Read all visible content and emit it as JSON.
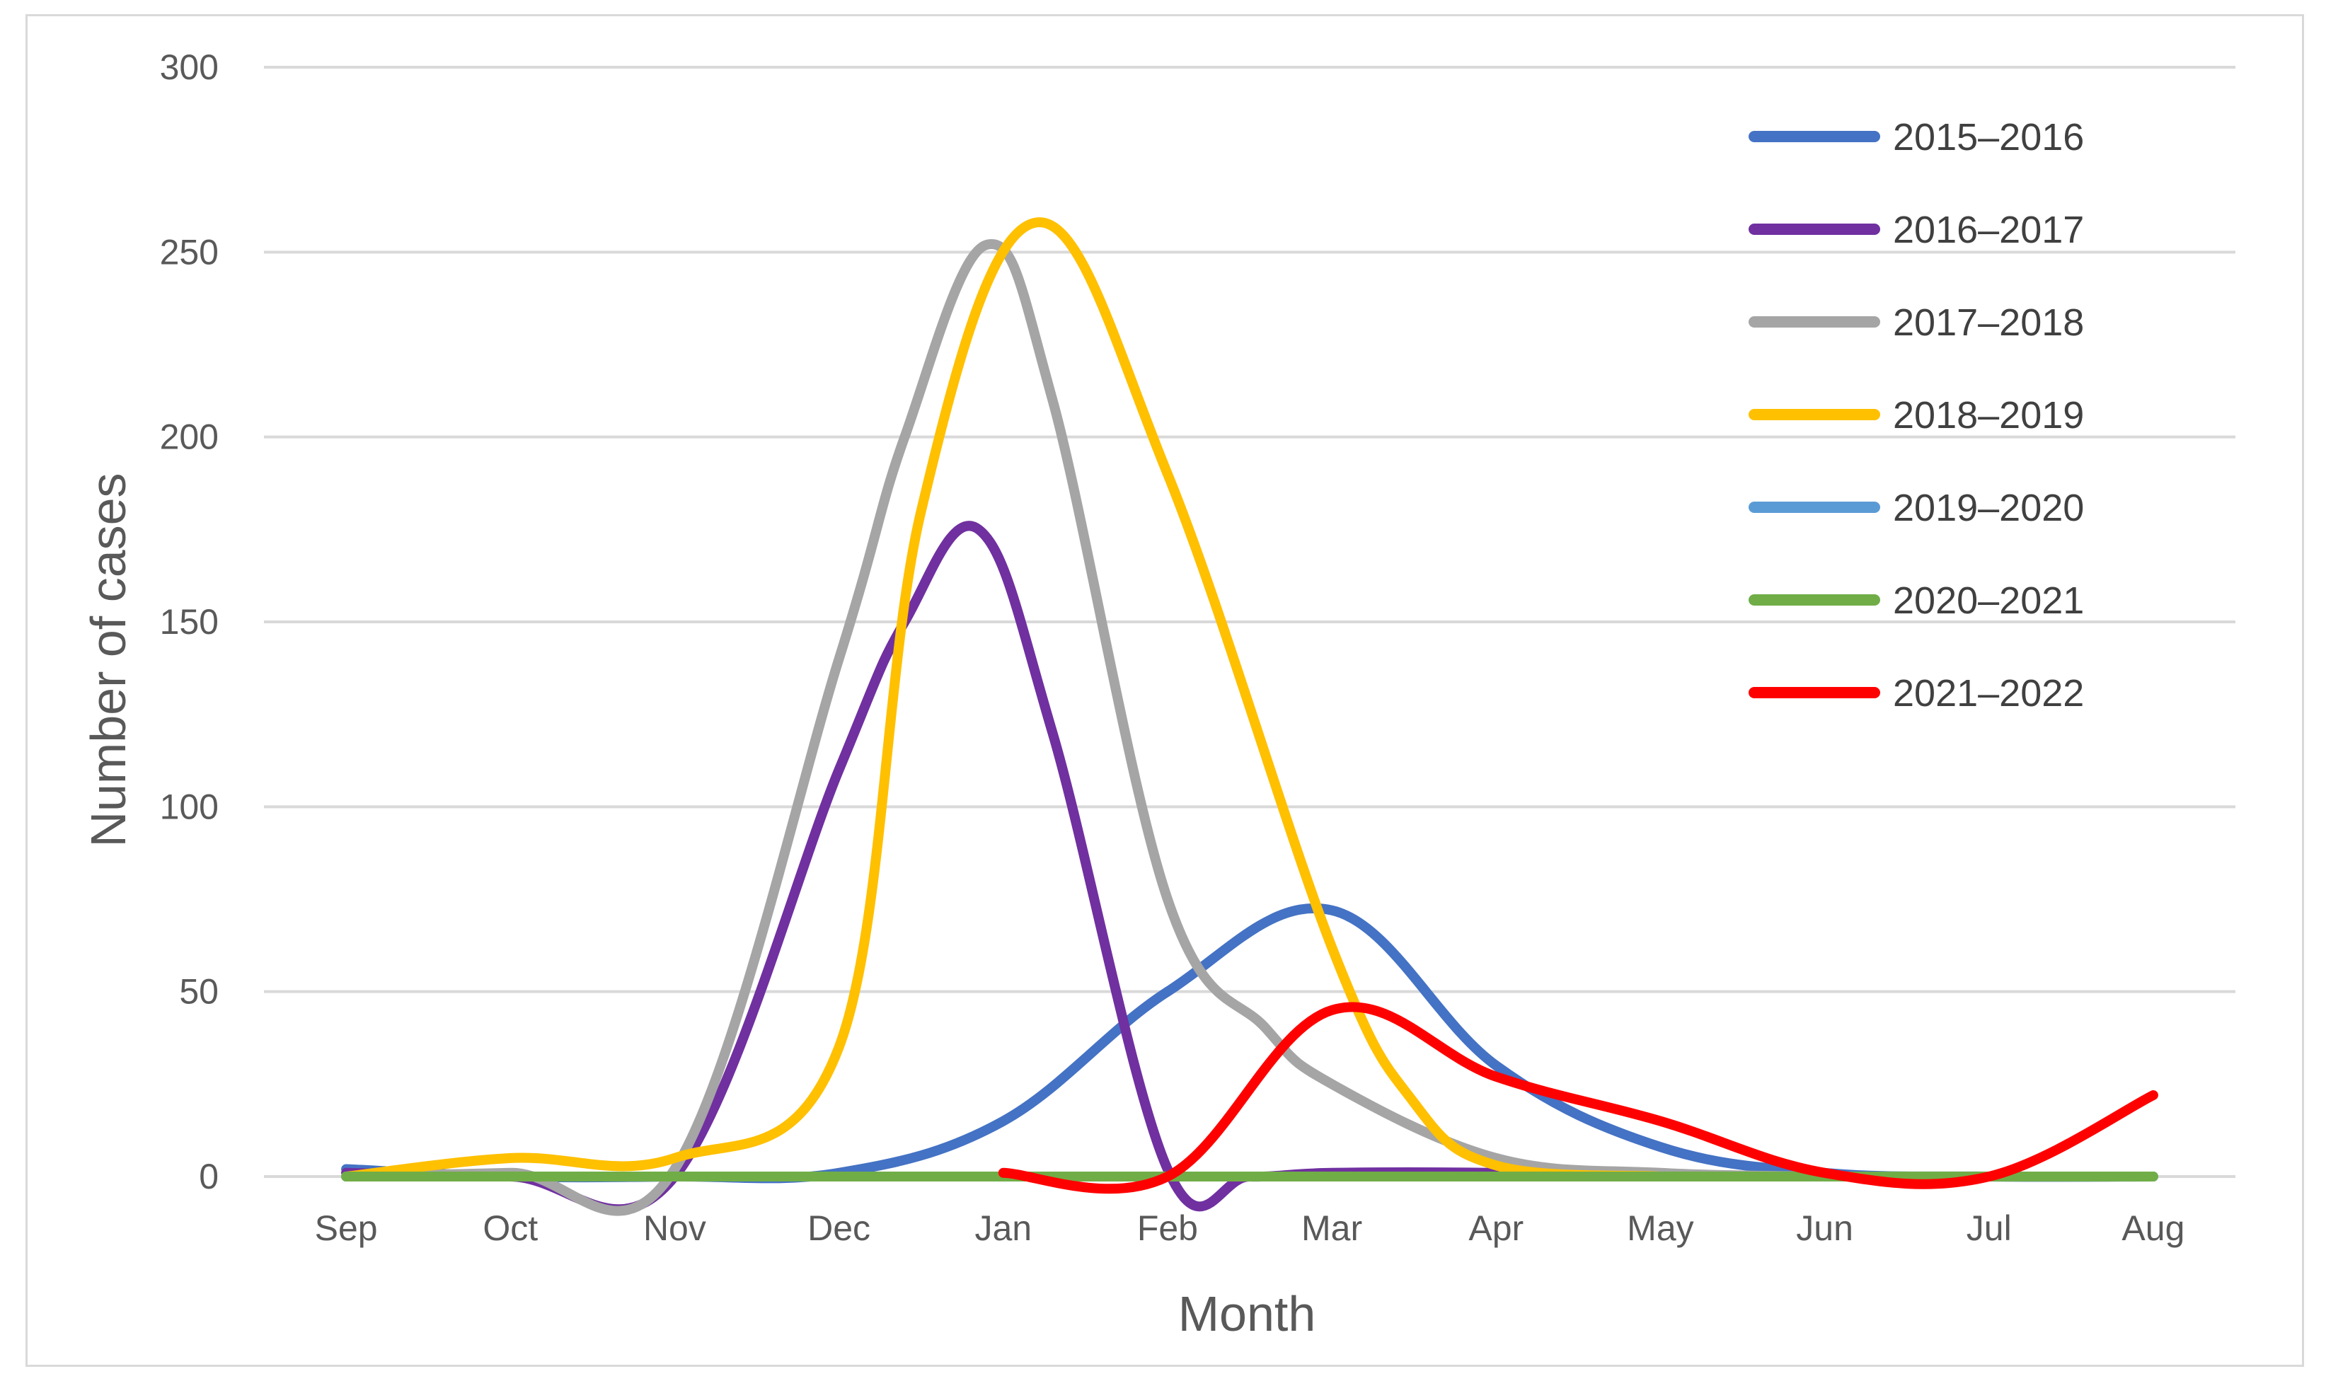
{
  "chart_data": {
    "type": "line",
    "title": "",
    "xlabel": "Month",
    "ylabel": "Number of cases",
    "ylim": [
      0,
      300
    ],
    "yticks": [
      0,
      50,
      100,
      150,
      200,
      250,
      300
    ],
    "grid": true,
    "legend_position": "top-right",
    "categories": [
      "Sep",
      "Oct",
      "Nov",
      "Dec",
      "Jan",
      "Feb",
      "Mar",
      "Apr",
      "May",
      "Jun",
      "Jul",
      "Aug"
    ],
    "series": [
      {
        "name": "2015–2016",
        "color": "#4472c4",
        "x": [
          0,
          1,
          2,
          3,
          4,
          5,
          6,
          7,
          8,
          9,
          10,
          11
        ],
        "values": [
          2,
          0,
          0,
          1,
          15,
          50,
          72,
          30,
          8,
          1,
          0,
          0
        ]
      },
      {
        "name": "2016–2017",
        "color": "#7030a0",
        "x": [
          0,
          1,
          2,
          3,
          3.4,
          3.85,
          4.3,
          5,
          5.5,
          6,
          7,
          8
        ],
        "values": [
          1,
          0,
          0,
          110,
          150,
          175,
          120,
          2,
          0,
          1,
          1,
          0
        ]
      },
      {
        "name": "2017–2018",
        "color": "#a5a5a5",
        "x": [
          0,
          1,
          2,
          3,
          3.4,
          3.9,
          4.3,
          5,
          5.6,
          6,
          7,
          8,
          9
        ],
        "values": [
          0,
          1,
          2,
          140,
          200,
          252,
          210,
          75,
          40,
          25,
          5,
          1,
          0
        ]
      },
      {
        "name": "2018–2019",
        "color": "#ffc000",
        "x": [
          0,
          1,
          2,
          3,
          3.5,
          4.2,
          5,
          6,
          6.5,
          7,
          8
        ],
        "values": [
          0,
          5,
          5,
          35,
          180,
          258,
          190,
          62,
          20,
          3,
          0
        ]
      },
      {
        "name": "2019–2020",
        "color": "#5b9bd5",
        "x": [
          0,
          1,
          2,
          3,
          4,
          5,
          6,
          7,
          8,
          9,
          10,
          11
        ],
        "values": [
          0,
          0,
          0,
          0,
          0,
          0,
          0,
          0,
          0,
          0,
          0,
          0
        ]
      },
      {
        "name": "2020–2021",
        "color": "#70ad47",
        "x": [
          0,
          1,
          2,
          3,
          4,
          5,
          6,
          7,
          8,
          9,
          10,
          11
        ],
        "values": [
          0,
          0,
          0,
          0,
          0,
          0,
          0,
          0,
          0,
          0,
          0,
          0
        ]
      },
      {
        "name": "2021–2022",
        "color": "#ff0000",
        "x": [
          4,
          5,
          6,
          7,
          8,
          9,
          10,
          11
        ],
        "values": [
          1,
          0,
          45,
          27,
          15,
          1,
          0,
          22
        ]
      }
    ]
  }
}
